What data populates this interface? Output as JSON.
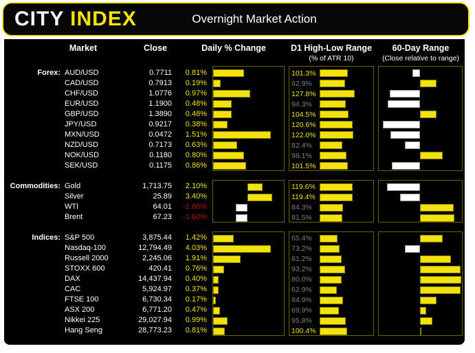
{
  "header": {
    "brand_city": "CITY",
    "brand_index": "INDEX",
    "title": "Overnight Market Action"
  },
  "columns": {
    "market": "Market",
    "close": "Close",
    "daily": "Daily % Change",
    "d1": "D1 High-Low Range",
    "d1_sub": "(% of ATR 10)",
    "range60": "60-Day Range",
    "range60_sub": "(Close relative to range)"
  },
  "colors": {
    "yellow": "#F2E30D",
    "yellow_bar_border": "#8B7F00",
    "white": "#FFFFFF",
    "gray": "#7F7F7F",
    "red": "#B31312",
    "box_border": "#6C6200",
    "panel_bg": "#000000",
    "header_border": "#EDE21B"
  },
  "chart_data": {
    "type": "table",
    "title": "Overnight Market Action",
    "legend": "Daily % bars: yellow = positive, white = negative. D1 range % of ATR10: yellow label >= 100%, gray < 100%. 60-day range: yellow bar right of mid = close in upper half of range, white bar left of mid = lower half.",
    "sections": [
      {
        "label": "Forex:",
        "rows": [
          {
            "market": "AUD/USD",
            "close": "0.7711",
            "daily_pct": 0.81,
            "daily_label": "0.81%",
            "atr_pct": 101.3,
            "atr_label": "101.3%",
            "pos_in_60d_range_pct": 41
          },
          {
            "market": "CAD/USD",
            "close": "0.7913",
            "daily_pct": 0.19,
            "daily_label": "0.19%",
            "atr_pct": 92.9,
            "atr_label": "92.9%",
            "pos_in_60d_range_pct": 70
          },
          {
            "market": "CHF/USD",
            "close": "1.0776",
            "daily_pct": 0.97,
            "daily_label": "0.97%",
            "atr_pct": 127.8,
            "atr_label": "127.8%",
            "pos_in_60d_range_pct": 13
          },
          {
            "market": "EUR/USD",
            "close": "1.1900",
            "daily_pct": 0.48,
            "daily_label": "0.48%",
            "atr_pct": 94.3,
            "atr_label": "94.3%",
            "pos_in_60d_range_pct": 11
          },
          {
            "market": "GBP/USD",
            "close": "1.3890",
            "daily_pct": 0.48,
            "daily_label": "0.48%",
            "atr_pct": 104.5,
            "atr_label": "104.5%",
            "pos_in_60d_range_pct": 70
          },
          {
            "market": "JPY/USD",
            "close": "0.9217",
            "daily_pct": 0.38,
            "daily_label": "0.38%",
            "atr_pct": 120.6,
            "atr_label": "120.6%",
            "pos_in_60d_range_pct": 5
          },
          {
            "market": "MXN/USD",
            "close": "0.0472",
            "daily_pct": 1.51,
            "daily_label": "1.51%",
            "atr_pct": 122.0,
            "atr_label": "122.0%",
            "pos_in_60d_range_pct": 14
          },
          {
            "market": "NZD/USD",
            "close": "0.7173",
            "daily_pct": 0.63,
            "daily_label": "0.63%",
            "atr_pct": 82.4,
            "atr_label": "82.4%",
            "pos_in_60d_range_pct": 32
          },
          {
            "market": "NOK/USD",
            "close": "0.1180",
            "daily_pct": 0.8,
            "daily_label": "0.80%",
            "atr_pct": 98.1,
            "atr_label": "98.1%",
            "pos_in_60d_range_pct": 77
          },
          {
            "market": "SEK/USD",
            "close": "0.1175",
            "daily_pct": 0.86,
            "daily_label": "0.86%",
            "atr_pct": 101.5,
            "atr_label": "101.5%",
            "pos_in_60d_range_pct": 16
          }
        ]
      },
      {
        "label": "Commodities:",
        "rows": [
          {
            "market": "Gold",
            "close": "1,713.75",
            "daily_pct": 2.1,
            "daily_label": "2.10%",
            "atr_pct": 119.6,
            "atr_label": "119.6%",
            "pos_in_60d_range_pct": 10
          },
          {
            "market": "Silver",
            "close": "25.89",
            "daily_pct": 3.4,
            "daily_label": "3.40%",
            "atr_pct": 119.4,
            "atr_label": "119.4%",
            "pos_in_60d_range_pct": 26
          },
          {
            "market": "WTI",
            "close": "64.01",
            "daily_pct": -1.6,
            "daily_label": "-1.60%",
            "atr_pct": 84.3,
            "atr_label": "84.3%",
            "pos_in_60d_range_pct": 90
          },
          {
            "market": "Brent",
            "close": "67.23",
            "daily_pct": -1.6,
            "daily_label": "-1.60%",
            "atr_pct": 81.5,
            "atr_label": "81.5%",
            "pos_in_60d_range_pct": 91
          }
        ]
      },
      {
        "label": "Indices:",
        "rows": [
          {
            "market": "S&P 500",
            "close": "3,875.44",
            "daily_pct": 1.42,
            "daily_label": "1.42%",
            "atr_pct": 65.4,
            "atr_label": "65.4%",
            "pos_in_60d_range_pct": 77
          },
          {
            "market": "Nasdaq-100",
            "close": "12,794.49",
            "daily_pct": 4.03,
            "daily_label": "4.03%",
            "atr_pct": 73.2,
            "atr_label": "73.2%",
            "pos_in_60d_range_pct": 32
          },
          {
            "market": "Russell 2000",
            "close": "2,245.06",
            "daily_pct": 1.91,
            "daily_label": "1.91%",
            "atr_pct": 81.2,
            "atr_label": "81.2%",
            "pos_in_60d_range_pct": 87
          },
          {
            "market": "STOXX 600",
            "close": "420.41",
            "daily_pct": 0.76,
            "daily_label": "0.76%",
            "atr_pct": 93.2,
            "atr_label": "93.2%",
            "pos_in_60d_range_pct": 98
          },
          {
            "market": "DAX",
            "close": "14,437.94",
            "daily_pct": 0.4,
            "daily_label": "0.40%",
            "atr_pct": 80.0,
            "atr_label": "80.0%",
            "pos_in_60d_range_pct": 99
          },
          {
            "market": "CAC",
            "close": "5,924.97",
            "daily_pct": 0.37,
            "daily_label": "0.37%",
            "atr_pct": 62.9,
            "atr_label": "62.9%",
            "pos_in_60d_range_pct": 98
          },
          {
            "market": "FTSE 100",
            "close": "6,730.34",
            "daily_pct": 0.17,
            "daily_label": "0.17%",
            "atr_pct": 84.9,
            "atr_label": "84.9%",
            "pos_in_60d_range_pct": 70
          },
          {
            "market": "ASX 200",
            "close": "6,771.20",
            "daily_pct": 0.47,
            "daily_label": "0.47%",
            "atr_pct": 69.9,
            "atr_label": "69.9%",
            "pos_in_60d_range_pct": 57
          },
          {
            "market": "Nikkei 225",
            "close": "29,027.94",
            "daily_pct": 0.99,
            "daily_label": "0.99%",
            "atr_pct": 95.8,
            "atr_label": "95.8%",
            "pos_in_60d_range_pct": 65
          },
          {
            "market": "Hang Seng",
            "close": "28,773.23",
            "daily_pct": 0.81,
            "daily_label": "0.81%",
            "atr_pct": 100.4,
            "atr_label": "100.4%",
            "pos_in_60d_range_pct": 51
          }
        ]
      }
    ]
  }
}
